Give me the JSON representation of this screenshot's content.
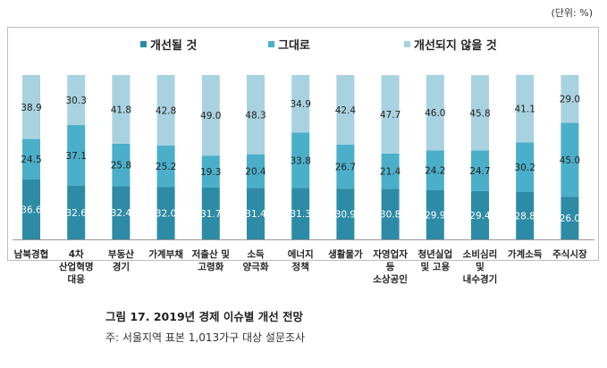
{
  "unit_label": "(단위: %)",
  "caption": "그림 17. 2019년 경제 이슈별 개선 전망",
  "note": "주: 서울지역 표본 1,013가구 대상 설문조사",
  "colors": {
    "improve": "#2e8ba5",
    "same": "#4bafc9",
    "not_improve": "#a9d2e0"
  },
  "chart_data": {
    "type": "bar",
    "stacked": true,
    "title": "",
    "xlabel": "",
    "ylabel": "",
    "ylim": [
      0,
      100
    ],
    "legend": [
      "개선될 것",
      "그대로",
      "개선되지 않을 것"
    ],
    "categories": [
      [
        "남북경협"
      ],
      [
        "4차",
        "산업혁명",
        "대응"
      ],
      [
        "부동산",
        "경기"
      ],
      [
        "가계부채"
      ],
      [
        "저출산 및",
        "고령화"
      ],
      [
        "소득",
        "양극화"
      ],
      [
        "에너지",
        "정책"
      ],
      [
        "생활물가"
      ],
      [
        "자영업자",
        "등",
        "소상공인"
      ],
      [
        "청년실업",
        "및 고용"
      ],
      [
        "소비심리",
        "및",
        "내수경기"
      ],
      [
        "가계소득"
      ],
      [
        "주식시장"
      ]
    ],
    "series": [
      {
        "name": "개선될 것",
        "values": [
          36.6,
          32.6,
          32.4,
          32.0,
          31.7,
          31.4,
          31.3,
          30.9,
          30.8,
          29.9,
          29.4,
          28.8,
          26.0
        ]
      },
      {
        "name": "그대로",
        "values": [
          24.5,
          37.1,
          25.8,
          25.2,
          19.3,
          20.4,
          33.8,
          26.7,
          21.4,
          24.2,
          24.7,
          30.2,
          45.0
        ]
      },
      {
        "name": "개선되지 않을 것",
        "values": [
          38.9,
          30.3,
          41.8,
          42.8,
          49.0,
          48.3,
          34.9,
          42.4,
          47.7,
          46.0,
          45.8,
          41.1,
          29.0
        ]
      }
    ]
  }
}
